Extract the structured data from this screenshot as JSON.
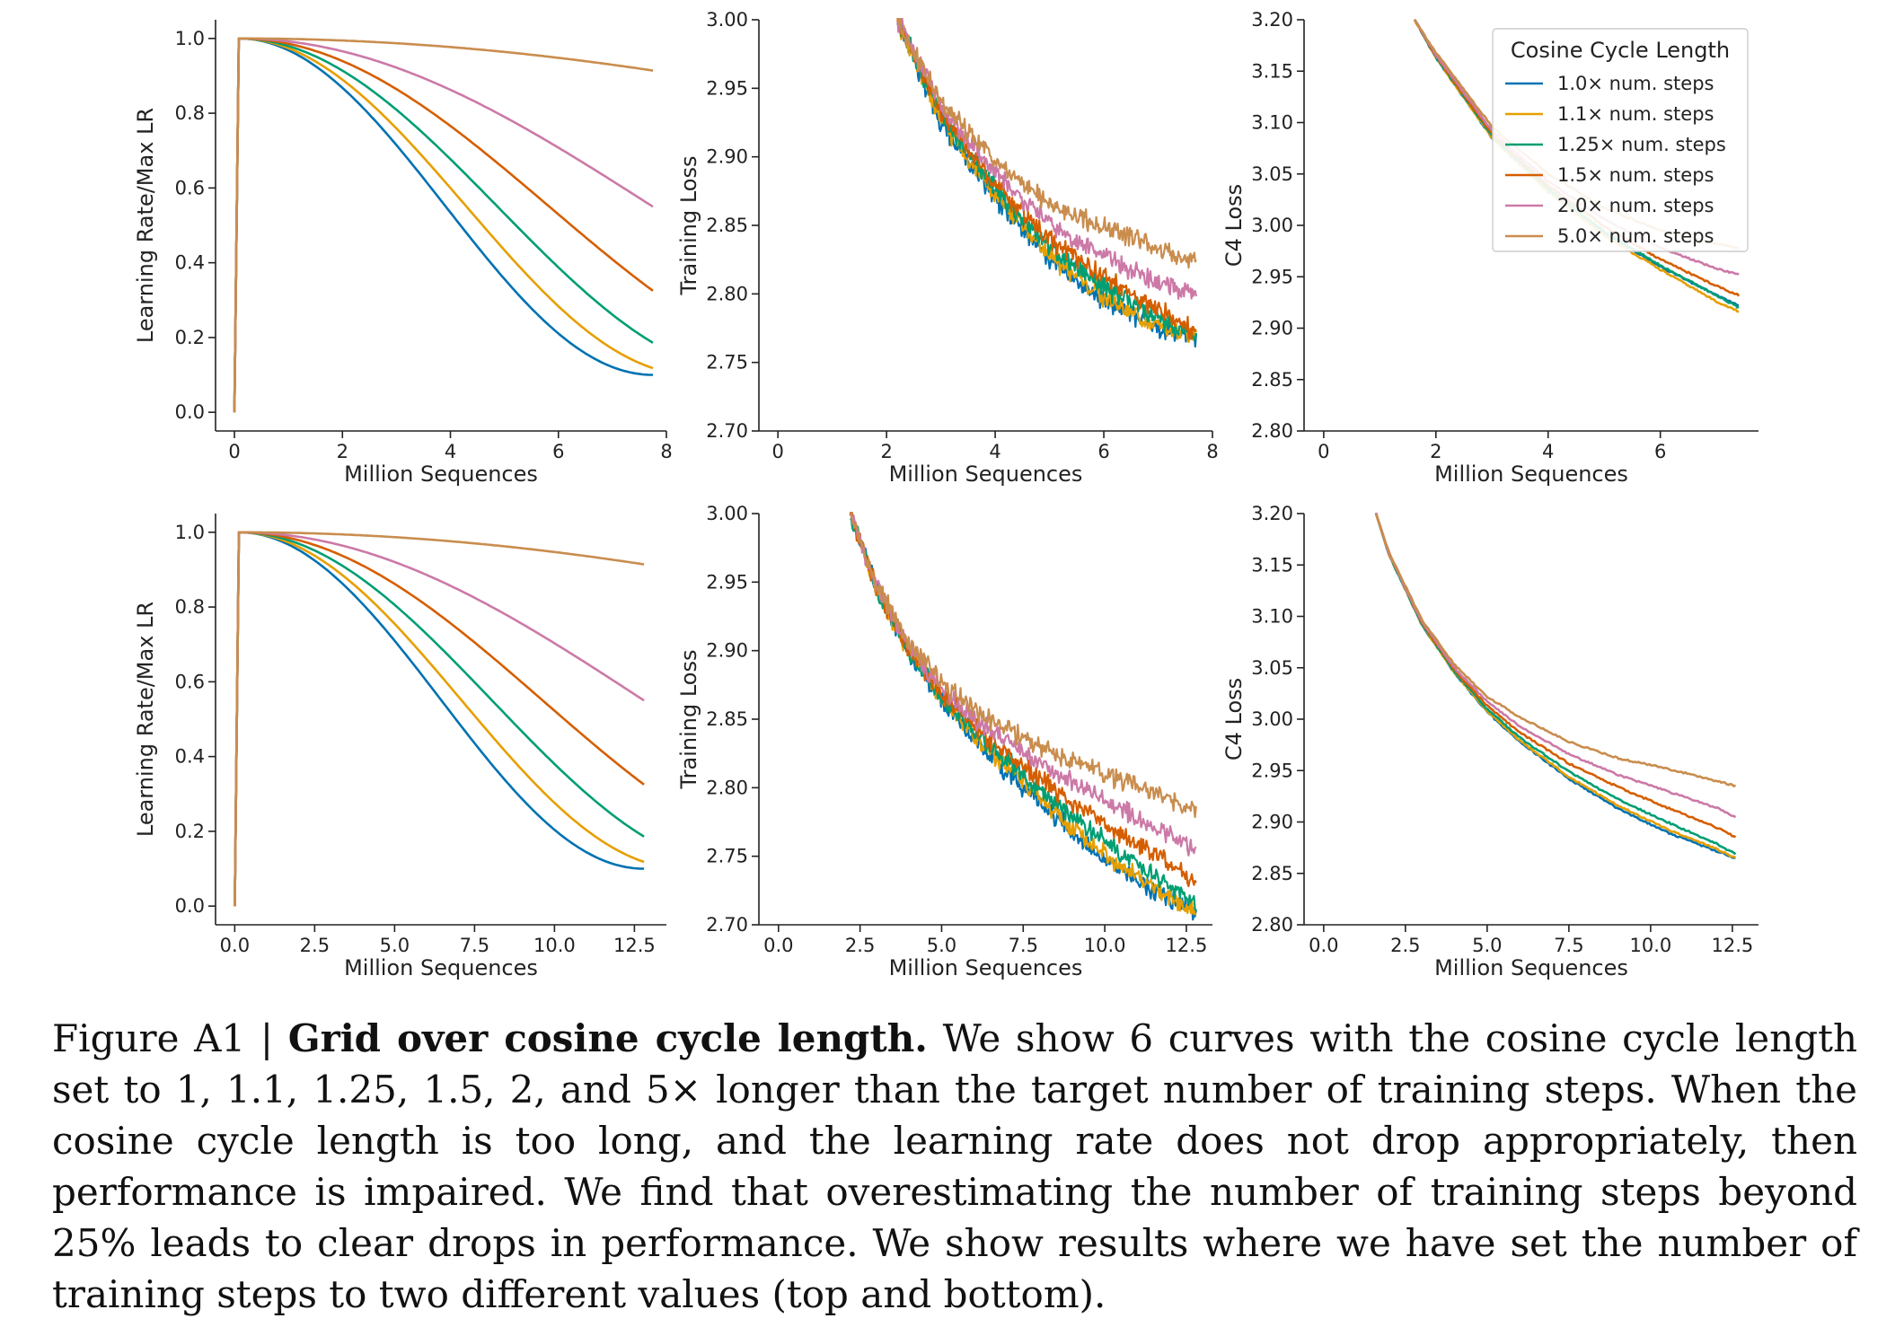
{
  "chart_data": [
    {
      "type": "line",
      "panel": "lr",
      "xlabel": "Million Sequences",
      "ylabel": "Learning Rate/Max LR",
      "xlim": [
        -0.35,
        8.0
      ],
      "ylim": [
        -0.05,
        1.05
      ],
      "xticks": [
        0,
        2,
        4,
        6,
        8
      ],
      "xtick_labels": [
        "0",
        "2",
        "4",
        "6",
        "8"
      ],
      "yticks": [
        0.0,
        0.2,
        0.4,
        0.6,
        0.8,
        1.0
      ],
      "ytick_labels": [
        "0.0",
        "0.2",
        "0.4",
        "0.6",
        "0.8",
        "1.0"
      ],
      "x_end": 7.75,
      "warmup_end": 0.08,
      "series": [
        {
          "name": "1.0× num. steps",
          "cycle_factor": 1.0
        },
        {
          "name": "1.1× num. steps",
          "cycle_factor": 1.1
        },
        {
          "name": "1.25× num. steps",
          "cycle_factor": 1.25
        },
        {
          "name": "1.5× num. steps",
          "cycle_factor": 1.5
        },
        {
          "name": "2.0× num. steps",
          "cycle_factor": 2.0
        },
        {
          "name": "5.0× num. steps",
          "cycle_factor": 5.0
        }
      ]
    },
    {
      "type": "line",
      "panel": "train",
      "xlabel": "Million Sequences",
      "ylabel": "Training Loss",
      "xlim": [
        -0.35,
        8.0
      ],
      "ylim": [
        2.7,
        3.0
      ],
      "xticks": [
        0,
        2,
        4,
        6,
        8
      ],
      "xtick_labels": [
        "0",
        "2",
        "4",
        "6",
        "8"
      ],
      "yticks": [
        2.7,
        2.75,
        2.8,
        2.85,
        2.9,
        2.95,
        3.0
      ],
      "ytick_labels": [
        "2.70",
        "2.75",
        "2.80",
        "2.85",
        "2.90",
        "2.95",
        "3.00"
      ],
      "series": [
        {
          "name": "1.0× num. steps",
          "x": [
            2.2,
            3.0,
            4.0,
            5.0,
            6.0,
            7.0,
            7.7
          ],
          "y": [
            3.0,
            2.925,
            2.87,
            2.825,
            2.795,
            2.775,
            2.768
          ]
        },
        {
          "name": "1.1× num. steps",
          "x": [
            2.2,
            3.0,
            4.0,
            5.0,
            6.0,
            7.0,
            7.7
          ],
          "y": [
            3.0,
            2.927,
            2.872,
            2.828,
            2.797,
            2.776,
            2.768
          ]
        },
        {
          "name": "1.25× num. steps",
          "x": [
            2.2,
            3.0,
            4.0,
            5.0,
            6.0,
            7.0,
            7.7
          ],
          "y": [
            3.0,
            2.93,
            2.876,
            2.835,
            2.805,
            2.781,
            2.768
          ]
        },
        {
          "name": "1.5× num. steps",
          "x": [
            2.2,
            3.0,
            4.0,
            5.0,
            6.0,
            7.0,
            7.7
          ],
          "y": [
            3.0,
            2.932,
            2.88,
            2.84,
            2.812,
            2.788,
            2.772
          ]
        },
        {
          "name": "2.0× num. steps",
          "x": [
            2.2,
            3.0,
            4.0,
            5.0,
            6.0,
            7.0,
            7.7
          ],
          "y": [
            3.0,
            2.936,
            2.888,
            2.851,
            2.827,
            2.808,
            2.798
          ]
        },
        {
          "name": "5.0× num. steps",
          "x": [
            2.2,
            3.0,
            4.0,
            5.0,
            6.0,
            7.0,
            7.7
          ],
          "y": [
            3.0,
            2.94,
            2.897,
            2.866,
            2.848,
            2.834,
            2.823
          ]
        }
      ]
    },
    {
      "type": "line",
      "panel": "c4",
      "xlabel": "Million Sequences",
      "ylabel": "C4 Loss",
      "xlim": [
        -0.35,
        7.75
      ],
      "ylim": [
        2.8,
        3.2
      ],
      "xticks": [
        0,
        2,
        4,
        6
      ],
      "xtick_labels": [
        "0",
        "2",
        "4",
        "6"
      ],
      "yticks": [
        2.8,
        2.85,
        2.9,
        2.95,
        3.0,
        3.05,
        3.1,
        3.15,
        3.2
      ],
      "ytick_labels": [
        "2.80",
        "2.85",
        "2.90",
        "2.95",
        "3.00",
        "3.05",
        "3.10",
        "3.15",
        "3.20"
      ],
      "legend": {
        "title": "Cosine Cycle Length",
        "location": "top-right"
      },
      "series": [
        {
          "name": "1.0× num. steps",
          "x": [
            1.62,
            2.0,
            3.0,
            4.0,
            5.0,
            6.0,
            7.0,
            7.4
          ],
          "y": [
            3.2,
            3.163,
            3.085,
            3.033,
            2.993,
            2.96,
            2.932,
            2.922
          ]
        },
        {
          "name": "1.1× num. steps",
          "x": [
            1.62,
            2.0,
            3.0,
            4.0,
            5.0,
            6.0,
            7.0,
            7.4
          ],
          "y": [
            3.2,
            3.163,
            3.085,
            3.033,
            2.99,
            2.957,
            2.926,
            2.916
          ]
        },
        {
          "name": "1.25× num. steps",
          "x": [
            1.62,
            2.0,
            3.0,
            4.0,
            5.0,
            6.0,
            7.0,
            7.4
          ],
          "y": [
            3.2,
            3.164,
            3.087,
            3.036,
            2.994,
            2.961,
            2.932,
            2.92
          ]
        },
        {
          "name": "1.5× num. steps",
          "x": [
            1.62,
            2.0,
            3.0,
            4.0,
            5.0,
            6.0,
            7.0,
            7.4
          ],
          "y": [
            3.2,
            3.165,
            3.089,
            3.039,
            2.999,
            2.967,
            2.941,
            2.932
          ]
        },
        {
          "name": "2.0× num. steps",
          "x": [
            1.62,
            2.0,
            3.0,
            4.0,
            5.0,
            6.0,
            7.0,
            7.4
          ],
          "y": [
            3.2,
            3.166,
            3.092,
            3.043,
            3.006,
            2.978,
            2.958,
            2.952
          ]
        },
        {
          "name": "5.0× num. steps",
          "x": [
            1.62,
            2.0,
            3.0,
            4.0,
            5.0,
            6.0,
            7.0,
            7.4
          ],
          "y": [
            3.2,
            3.168,
            3.096,
            3.05,
            3.017,
            2.995,
            2.982,
            2.978
          ]
        }
      ]
    },
    {
      "type": "line",
      "panel": "lr",
      "xlabel": "Million Sequences",
      "ylabel": "Learning Rate/Max LR",
      "xlim": [
        -0.6,
        13.5
      ],
      "ylim": [
        -0.05,
        1.05
      ],
      "xticks": [
        0.0,
        2.5,
        5.0,
        7.5,
        10.0,
        12.5
      ],
      "xtick_labels": [
        "0.0",
        "2.5",
        "5.0",
        "7.5",
        "10.0",
        "12.5"
      ],
      "yticks": [
        0.0,
        0.2,
        0.4,
        0.6,
        0.8,
        1.0
      ],
      "ytick_labels": [
        "0.0",
        "0.2",
        "0.4",
        "0.6",
        "0.8",
        "1.0"
      ],
      "x_end": 12.8,
      "warmup_end": 0.13,
      "series": [
        {
          "name": "1.0× num. steps",
          "cycle_factor": 1.0
        },
        {
          "name": "1.1× num. steps",
          "cycle_factor": 1.1
        },
        {
          "name": "1.25× num. steps",
          "cycle_factor": 1.25
        },
        {
          "name": "1.5× num. steps",
          "cycle_factor": 1.5
        },
        {
          "name": "2.0× num. steps",
          "cycle_factor": 2.0
        },
        {
          "name": "5.0× num. steps",
          "cycle_factor": 5.0
        }
      ]
    },
    {
      "type": "line",
      "panel": "train",
      "xlabel": "Million Sequences",
      "ylabel": "Training Loss",
      "xlim": [
        -0.6,
        13.3
      ],
      "ylim": [
        2.7,
        3.0
      ],
      "xticks": [
        0.0,
        2.5,
        5.0,
        7.5,
        10.0,
        12.5
      ],
      "xtick_labels": [
        "0.0",
        "2.5",
        "5.0",
        "7.5",
        "10.0",
        "12.5"
      ],
      "yticks": [
        2.7,
        2.75,
        2.8,
        2.85,
        2.9,
        2.95,
        3.0
      ],
      "ytick_labels": [
        "2.70",
        "2.75",
        "2.80",
        "2.85",
        "2.90",
        "2.95",
        "3.00"
      ],
      "series": [
        {
          "name": "1.0× num. steps",
          "x": [
            2.2,
            3.0,
            4.0,
            5.0,
            6.0,
            7.5,
            9.0,
            10.5,
            12.0,
            12.8
          ],
          "y": [
            3.0,
            2.945,
            2.898,
            2.862,
            2.835,
            2.8,
            2.768,
            2.74,
            2.718,
            2.71
          ]
        },
        {
          "name": "1.1× num. steps",
          "x": [
            2.2,
            3.0,
            4.0,
            5.0,
            6.0,
            7.5,
            9.0,
            10.5,
            12.0,
            12.8
          ],
          "y": [
            3.0,
            2.945,
            2.899,
            2.864,
            2.838,
            2.803,
            2.771,
            2.743,
            2.72,
            2.71
          ]
        },
        {
          "name": "1.25× num. steps",
          "x": [
            2.2,
            3.0,
            4.0,
            5.0,
            6.0,
            7.5,
            9.0,
            10.5,
            12.0,
            12.8
          ],
          "y": [
            3.0,
            2.946,
            2.9,
            2.866,
            2.841,
            2.809,
            2.779,
            2.752,
            2.728,
            2.714
          ]
        },
        {
          "name": "1.5× num. steps",
          "x": [
            2.2,
            3.0,
            4.0,
            5.0,
            6.0,
            7.5,
            9.0,
            10.5,
            12.0,
            12.8
          ],
          "y": [
            3.0,
            2.946,
            2.901,
            2.869,
            2.845,
            2.816,
            2.789,
            2.766,
            2.744,
            2.73
          ]
        },
        {
          "name": "2.0× num. steps",
          "x": [
            2.2,
            3.0,
            4.0,
            5.0,
            6.0,
            7.5,
            9.0,
            10.5,
            12.0,
            12.8
          ],
          "y": [
            3.0,
            2.947,
            2.903,
            2.872,
            2.851,
            2.826,
            2.804,
            2.784,
            2.766,
            2.755
          ]
        },
        {
          "name": "5.0× num. steps",
          "x": [
            2.2,
            3.0,
            4.0,
            5.0,
            6.0,
            7.5,
            9.0,
            10.5,
            12.0,
            12.8
          ],
          "y": [
            3.0,
            2.948,
            2.906,
            2.877,
            2.857,
            2.836,
            2.819,
            2.805,
            2.792,
            2.782
          ]
        }
      ]
    },
    {
      "type": "line",
      "panel": "c4",
      "xlabel": "Million Sequences",
      "ylabel": "C4 Loss",
      "xlim": [
        -0.6,
        13.3
      ],
      "ylim": [
        2.8,
        3.2
      ],
      "xticks": [
        0.0,
        2.5,
        5.0,
        7.5,
        10.0,
        12.5
      ],
      "xtick_labels": [
        "0.0",
        "2.5",
        "5.0",
        "7.5",
        "10.0",
        "12.5"
      ],
      "yticks": [
        2.8,
        2.85,
        2.9,
        2.95,
        3.0,
        3.05,
        3.1,
        3.15,
        3.2
      ],
      "ytick_labels": [
        "2.80",
        "2.85",
        "2.90",
        "2.95",
        "3.00",
        "3.05",
        "3.10",
        "3.15",
        "3.20"
      ],
      "series": [
        {
          "name": "1.0× num. steps",
          "x": [
            1.6,
            2.0,
            3.0,
            4.0,
            5.0,
            6.0,
            7.5,
            9.0,
            10.5,
            12.0,
            12.6
          ],
          "y": [
            3.2,
            3.16,
            3.092,
            3.045,
            3.007,
            2.978,
            2.942,
            2.913,
            2.89,
            2.872,
            2.865
          ]
        },
        {
          "name": "1.1× num. steps",
          "x": [
            1.6,
            2.0,
            3.0,
            4.0,
            5.0,
            6.0,
            7.5,
            9.0,
            10.5,
            12.0,
            12.6
          ],
          "y": [
            3.2,
            3.16,
            3.092,
            3.045,
            3.008,
            2.979,
            2.944,
            2.916,
            2.893,
            2.874,
            2.865
          ]
        },
        {
          "name": "1.25× num. steps",
          "x": [
            1.6,
            2.0,
            3.0,
            4.0,
            5.0,
            6.0,
            7.5,
            9.0,
            10.5,
            12.0,
            12.6
          ],
          "y": [
            3.2,
            3.16,
            3.093,
            3.046,
            3.01,
            2.982,
            2.949,
            2.922,
            2.9,
            2.879,
            2.869
          ]
        },
        {
          "name": "1.5× num. steps",
          "x": [
            1.6,
            2.0,
            3.0,
            4.0,
            5.0,
            6.0,
            7.5,
            9.0,
            10.5,
            12.0,
            12.6
          ],
          "y": [
            3.2,
            3.161,
            3.094,
            3.048,
            3.013,
            2.987,
            2.957,
            2.934,
            2.914,
            2.895,
            2.885
          ]
        },
        {
          "name": "2.0× num. steps",
          "x": [
            1.6,
            2.0,
            3.0,
            4.0,
            5.0,
            6.0,
            7.5,
            9.0,
            10.5,
            12.0,
            12.6
          ],
          "y": [
            3.2,
            3.161,
            3.095,
            3.05,
            3.017,
            2.993,
            2.966,
            2.946,
            2.93,
            2.914,
            2.905
          ]
        },
        {
          "name": "5.0× num. steps",
          "x": [
            1.6,
            2.0,
            3.0,
            4.0,
            5.0,
            6.0,
            7.5,
            9.0,
            10.5,
            12.0,
            12.6
          ],
          "y": [
            3.2,
            3.162,
            3.097,
            3.053,
            3.022,
            3.002,
            2.978,
            2.962,
            2.952,
            2.94,
            2.935
          ]
        }
      ]
    }
  ],
  "colors": [
    "#0072b2",
    "#e69f00",
    "#009e73",
    "#d55e00",
    "#cc79a7",
    "#c98d4e"
  ],
  "caption": {
    "label": "Figure A1 | ",
    "bold": "Grid over cosine cycle length.",
    "text": " We show 6 curves with the cosine cycle length set to 1, 1.1, 1.25, 1.5, 2, and 5× longer than the target number of training steps. When the cosine cycle length is too long, and the learning rate does not drop appropriately, then performance is impaired. We find that overestimating the number of training steps beyond 25% leads to clear drops in performance. We show results where we have set the number of training steps to two different values (top and bottom)."
  }
}
